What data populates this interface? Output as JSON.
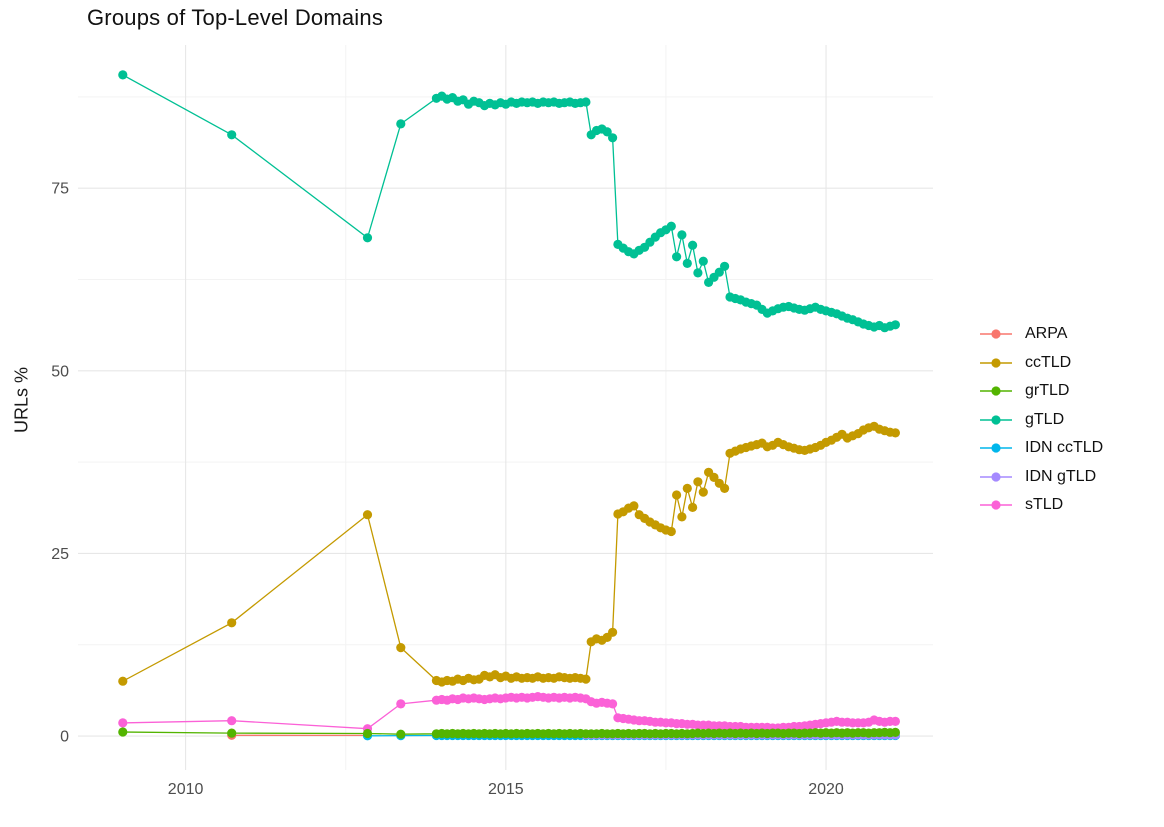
{
  "chart_data": {
    "type": "line",
    "title": "Groups of Top-Level Domains",
    "xlabel": "",
    "ylabel": "URLs %",
    "xlim": [
      2008.32,
      2021.67
    ],
    "ylim": [
      -4.65,
      94.6
    ],
    "x_ticks": [
      {
        "v": 2010,
        "label": "2010"
      },
      {
        "v": 2015,
        "label": "2015"
      },
      {
        "v": 2020,
        "label": "2020"
      }
    ],
    "x_minor_ticks": [
      2012.5,
      2017.5
    ],
    "y_ticks": [
      {
        "v": 0,
        "label": "0"
      },
      {
        "v": 25,
        "label": "25"
      },
      {
        "v": 50,
        "label": "50"
      },
      {
        "v": 75,
        "label": "75"
      }
    ],
    "y_minor_ticks": [
      12.5,
      37.5,
      62.5,
      87.5
    ],
    "grid": true,
    "legend_position": "right",
    "series": [
      {
        "name": "ARPA",
        "color": "#F8766D",
        "z": 1,
        "sparse": [
          [
            2010.72,
            0.1
          ],
          [
            2012.84,
            0.08
          ]
        ],
        "dense_start": null,
        "dense_step": null,
        "dense_values": []
      },
      {
        "name": "ccTLD",
        "color": "#C49A00",
        "z": 5,
        "sparse": [
          [
            2009.02,
            7.5
          ],
          [
            2010.72,
            15.5
          ],
          [
            2012.84,
            30.3
          ],
          [
            2013.36,
            12.1
          ]
        ],
        "dense_start": 2013.9167,
        "dense_step": 0.08333,
        "dense_values": [
          7.6,
          7.4,
          7.6,
          7.5,
          7.8,
          7.6,
          7.9,
          7.7,
          7.8,
          8.3,
          8.1,
          8.4,
          8.0,
          8.2,
          7.9,
          8.1,
          7.9,
          8.0,
          7.9,
          8.1,
          7.9,
          8.0,
          7.9,
          8.1,
          8.0,
          7.9,
          8.0,
          7.9,
          7.8,
          12.9,
          13.3,
          13.1,
          13.5,
          14.2,
          30.4,
          30.7,
          31.2,
          31.5,
          30.3,
          29.8,
          29.3,
          28.9,
          28.5,
          28.2,
          28.0,
          33.0,
          30.0,
          33.9,
          31.3,
          34.8,
          33.4,
          36.1,
          35.4,
          34.6,
          33.9,
          38.7,
          39.0,
          39.3,
          39.5,
          39.7,
          39.9,
          40.1,
          39.6,
          39.8,
          40.2,
          39.9,
          39.6,
          39.4,
          39.2,
          39.1,
          39.3,
          39.5,
          39.8,
          40.2,
          40.5,
          40.9,
          41.3,
          40.8,
          41.1,
          41.4,
          41.9,
          42.2,
          42.4,
          42.0,
          41.8,
          41.6,
          41.5
        ]
      },
      {
        "name": "grTLD",
        "color": "#53B400",
        "z": 7,
        "sparse": [
          [
            2009.02,
            0.55
          ],
          [
            2010.72,
            0.4
          ],
          [
            2012.84,
            0.35
          ],
          [
            2013.36,
            0.25
          ]
        ],
        "dense_start": 2013.9167,
        "dense_step": 0.08333,
        "dense_values": [
          0.3,
          0.35,
          0.3,
          0.35,
          0.3,
          0.35,
          0.3,
          0.35,
          0.3,
          0.35,
          0.3,
          0.35,
          0.3,
          0.35,
          0.3,
          0.35,
          0.3,
          0.35,
          0.3,
          0.35,
          0.3,
          0.35,
          0.3,
          0.35,
          0.3,
          0.35,
          0.3,
          0.35,
          0.3,
          0.3,
          0.3,
          0.35,
          0.3,
          0.3,
          0.35,
          0.3,
          0.35,
          0.3,
          0.35,
          0.35,
          0.3,
          0.35,
          0.3,
          0.35,
          0.35,
          0.3,
          0.35,
          0.3,
          0.35,
          0.4,
          0.35,
          0.4,
          0.35,
          0.4,
          0.35,
          0.4,
          0.35,
          0.4,
          0.35,
          0.4,
          0.35,
          0.4,
          0.35,
          0.4,
          0.4,
          0.35,
          0.4,
          0.4,
          0.35,
          0.4,
          0.4,
          0.45,
          0.4,
          0.45,
          0.4,
          0.45,
          0.4,
          0.45,
          0.4,
          0.45,
          0.45,
          0.4,
          0.45,
          0.45,
          0.5,
          0.45,
          0.5
        ]
      },
      {
        "name": "gTLD",
        "color": "#00C094",
        "z": 6,
        "sparse": [
          [
            2009.02,
            90.5
          ],
          [
            2010.72,
            82.3
          ],
          [
            2012.84,
            68.2
          ],
          [
            2013.36,
            83.8
          ]
        ],
        "dense_start": 2013.9167,
        "dense_step": 0.08333,
        "dense_values": [
          87.3,
          87.6,
          87.2,
          87.4,
          86.9,
          87.1,
          86.5,
          86.9,
          86.7,
          86.3,
          86.6,
          86.4,
          86.7,
          86.5,
          86.8,
          86.6,
          86.8,
          86.7,
          86.8,
          86.6,
          86.8,
          86.7,
          86.8,
          86.6,
          86.7,
          86.8,
          86.6,
          86.7,
          86.8,
          82.3,
          82.9,
          83.1,
          82.7,
          81.9,
          67.3,
          66.8,
          66.3,
          66.0,
          66.5,
          66.9,
          67.6,
          68.3,
          68.9,
          69.3,
          69.8,
          65.6,
          68.6,
          64.7,
          67.2,
          63.4,
          65.0,
          62.1,
          62.8,
          63.5,
          64.3,
          60.1,
          59.9,
          59.7,
          59.4,
          59.2,
          59.0,
          58.4,
          57.9,
          58.2,
          58.5,
          58.7,
          58.8,
          58.6,
          58.4,
          58.3,
          58.5,
          58.7,
          58.4,
          58.2,
          58.0,
          57.8,
          57.5,
          57.2,
          57.0,
          56.7,
          56.4,
          56.2,
          56.0,
          56.2,
          55.9,
          56.1,
          56.3
        ]
      },
      {
        "name": "IDN ccTLD",
        "color": "#00B6EB",
        "z": 2,
        "sparse": [
          [
            2012.84,
            0.03
          ],
          [
            2013.36,
            0.06
          ]
        ],
        "dense_start": 2013.9167,
        "dense_step": 0.08333,
        "dense_values": [
          0.07,
          0.07,
          0.07,
          0.07,
          0.07,
          0.07,
          0.07,
          0.07,
          0.07,
          0.07,
          0.07,
          0.07,
          0.07,
          0.07,
          0.07,
          0.07,
          0.07,
          0.07,
          0.07,
          0.07,
          0.07,
          0.07,
          0.07,
          0.07,
          0.07,
          0.07,
          0.07,
          0.07,
          0.07,
          0.07,
          0.07,
          0.07,
          0.07,
          0.07,
          0.07,
          0.07,
          0.07,
          0.07,
          0.07,
          0.07,
          0.07,
          0.07,
          0.07,
          0.07,
          0.07,
          0.07,
          0.07,
          0.07,
          0.07,
          0.07,
          0.07,
          0.07,
          0.07,
          0.07,
          0.07,
          0.07,
          0.07,
          0.07,
          0.07,
          0.07,
          0.07,
          0.07,
          0.07,
          0.07,
          0.07,
          0.07,
          0.07,
          0.07,
          0.07,
          0.07,
          0.07,
          0.07,
          0.07,
          0.07,
          0.07,
          0.07,
          0.07,
          0.07,
          0.07,
          0.07,
          0.07,
          0.07,
          0.07,
          0.07,
          0.07,
          0.07,
          0.07
        ]
      },
      {
        "name": "IDN gTLD",
        "color": "#A58AFF",
        "z": 3,
        "sparse": [],
        "dense_start": 2016.25,
        "dense_step": 0.08333,
        "dense_values": [
          0.15,
          0.15,
          0.15,
          0.15,
          0.15,
          0.15,
          0.15,
          0.15,
          0.15,
          0.15,
          0.15,
          0.15,
          0.15,
          0.15,
          0.15,
          0.15,
          0.15,
          0.15,
          0.15,
          0.15,
          0.15,
          0.15,
          0.15,
          0.15,
          0.15,
          0.15,
          0.15,
          0.15,
          0.15,
          0.15,
          0.15,
          0.15,
          0.15,
          0.15,
          0.15,
          0.15,
          0.15,
          0.15,
          0.15,
          0.15,
          0.15,
          0.15,
          0.15,
          0.15,
          0.15,
          0.15,
          0.15,
          0.15,
          0.15,
          0.15,
          0.15,
          0.15,
          0.15,
          0.15,
          0.15,
          0.15,
          0.15,
          0.15,
          0.15
        ]
      },
      {
        "name": "sTLD",
        "color": "#FB61D7",
        "z": 4,
        "sparse": [
          [
            2009.02,
            1.8
          ],
          [
            2010.72,
            2.1
          ],
          [
            2012.84,
            1.0
          ],
          [
            2013.36,
            4.4
          ]
        ],
        "dense_start": 2013.9167,
        "dense_step": 0.08333,
        "dense_values": [
          4.9,
          5.0,
          4.9,
          5.1,
          5.0,
          5.2,
          5.1,
          5.2,
          5.1,
          5.0,
          5.1,
          5.2,
          5.1,
          5.2,
          5.3,
          5.2,
          5.3,
          5.2,
          5.3,
          5.4,
          5.3,
          5.2,
          5.3,
          5.2,
          5.3,
          5.2,
          5.3,
          5.2,
          5.1,
          4.7,
          4.5,
          4.6,
          4.5,
          4.4,
          2.5,
          2.4,
          2.3,
          2.2,
          2.1,
          2.1,
          2.0,
          1.9,
          1.9,
          1.8,
          1.8,
          1.7,
          1.7,
          1.6,
          1.6,
          1.5,
          1.5,
          1.5,
          1.4,
          1.4,
          1.4,
          1.3,
          1.3,
          1.3,
          1.2,
          1.2,
          1.2,
          1.2,
          1.2,
          1.1,
          1.1,
          1.2,
          1.2,
          1.3,
          1.3,
          1.4,
          1.5,
          1.6,
          1.7,
          1.8,
          1.9,
          2.0,
          1.9,
          1.9,
          1.8,
          1.8,
          1.8,
          1.9,
          2.2,
          2.0,
          1.9,
          2.0,
          2.0
        ]
      }
    ]
  },
  "style_colors": {
    "grid_major": "#e7e7e7",
    "grid_minor": "#f3f3f3",
    "tick_text": "#4d4d4d",
    "title_text": "#111111"
  }
}
